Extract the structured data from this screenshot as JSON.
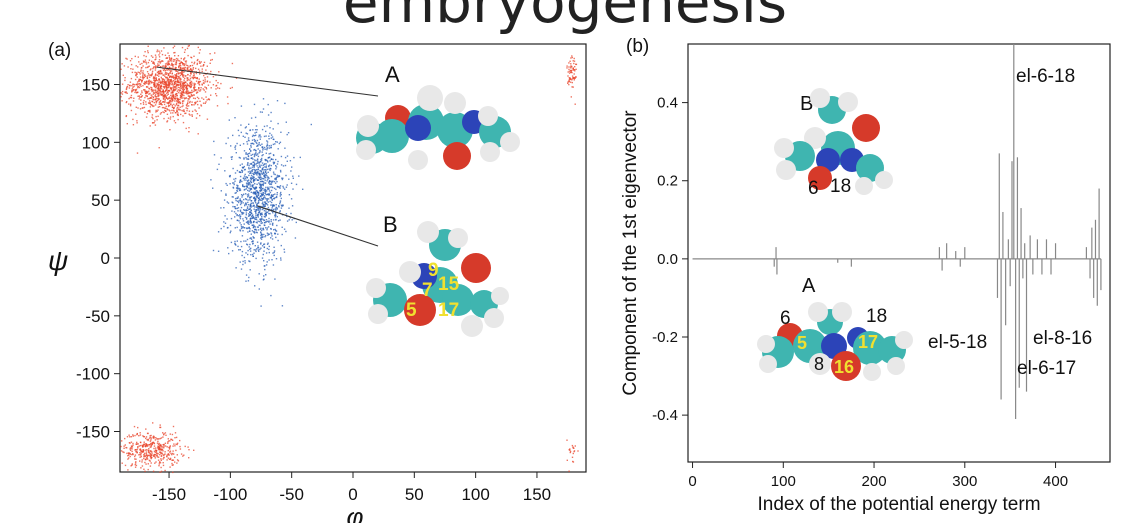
{
  "header_partial": "embryogenesis",
  "chart_data": [
    {
      "type": "scatter",
      "panel": "(a)",
      "xlabel": "φ",
      "ylabel": "ψ",
      "xlim": [
        -190,
        190
      ],
      "ylim": [
        -185,
        185
      ],
      "xticks": [
        -150,
        -100,
        -50,
        0,
        50,
        100,
        150
      ],
      "yticks": [
        -150,
        -100,
        -50,
        0,
        50,
        100,
        150
      ],
      "grid": false,
      "series": [
        {
          "color": "#e8452c",
          "clusters": [
            {
              "phi": -150,
              "psi": 150,
              "sphi": 17,
              "spsi": 14,
              "n": 1400
            },
            {
              "phi": -165,
              "psi": -165,
              "sphi": 12,
              "spsi": 8,
              "n": 420
            },
            {
              "phi": 178,
              "psi": 160,
              "sphi": 2,
              "spsi": 10,
              "n": 70
            },
            {
              "phi": 178,
              "psi": -168,
              "sphi": 2,
              "spsi": 6,
              "n": 20
            }
          ]
        },
        {
          "color": "#2a5fb5",
          "clusters": [
            {
              "phi": -78,
              "psi": 55,
              "sphi": 12,
              "spsi": 28,
              "n": 1300
            }
          ]
        }
      ],
      "annotations": [
        {
          "text": "A",
          "target": {
            "phi": -160,
            "psi": 165
          }
        },
        {
          "text": "B",
          "target": {
            "phi": -78,
            "psi": 45
          }
        }
      ],
      "atom_labels": [
        "9",
        "7",
        "15",
        "5",
        "17"
      ]
    },
    {
      "type": "line",
      "panel": "(b)",
      "xlabel": "Index of the potential energy term",
      "ylabel": "Component of the 1st eigenvector",
      "xlim": [
        -5,
        460
      ],
      "ylim": [
        -0.52,
        0.55
      ],
      "xticks": [
        0,
        100,
        200,
        300,
        400
      ],
      "yticks": [
        -0.4,
        -0.2,
        0.0,
        0.2,
        0.4
      ],
      "grid": false,
      "color": "#888888",
      "spikes": [
        {
          "x": 90,
          "y": -0.02
        },
        {
          "x": 92,
          "y": 0.03
        },
        {
          "x": 93,
          "y": -0.04
        },
        {
          "x": 160,
          "y": -0.01
        },
        {
          "x": 175,
          "y": -0.02
        },
        {
          "x": 272,
          "y": 0.03
        },
        {
          "x": 275,
          "y": -0.03
        },
        {
          "x": 280,
          "y": 0.04
        },
        {
          "x": 290,
          "y": 0.02
        },
        {
          "x": 295,
          "y": -0.02
        },
        {
          "x": 300,
          "y": 0.03
        },
        {
          "x": 336,
          "y": -0.1
        },
        {
          "x": 338,
          "y": 0.27
        },
        {
          "x": 340,
          "y": -0.36
        },
        {
          "x": 342,
          "y": 0.12
        },
        {
          "x": 345,
          "y": -0.17
        },
        {
          "x": 348,
          "y": 0.05
        },
        {
          "x": 350,
          "y": -0.07
        },
        {
          "x": 352,
          "y": 0.25
        },
        {
          "x": 354,
          "y": 0.55
        },
        {
          "x": 356,
          "y": -0.41
        },
        {
          "x": 358,
          "y": 0.26
        },
        {
          "x": 360,
          "y": -0.33
        },
        {
          "x": 362,
          "y": 0.13
        },
        {
          "x": 364,
          "y": -0.05
        },
        {
          "x": 366,
          "y": 0.04
        },
        {
          "x": 368,
          "y": -0.34
        },
        {
          "x": 372,
          "y": 0.06
        },
        {
          "x": 375,
          "y": -0.04
        },
        {
          "x": 380,
          "y": 0.05
        },
        {
          "x": 385,
          "y": -0.04
        },
        {
          "x": 390,
          "y": 0.05
        },
        {
          "x": 395,
          "y": -0.04
        },
        {
          "x": 400,
          "y": 0.04
        },
        {
          "x": 434,
          "y": 0.03
        },
        {
          "x": 438,
          "y": -0.05
        },
        {
          "x": 440,
          "y": 0.08
        },
        {
          "x": 442,
          "y": -0.1
        },
        {
          "x": 444,
          "y": 0.1
        },
        {
          "x": 446,
          "y": -0.12
        },
        {
          "x": 448,
          "y": 0.18
        },
        {
          "x": 450,
          "y": -0.08
        }
      ],
      "annotations": [
        "el-6-18",
        "el-5-18",
        "el-8-16",
        "el-6-17"
      ],
      "inset_B_label": "B",
      "inset_B_numbers": [
        "6",
        "18"
      ],
      "inset_A_label": "A",
      "inset_A_numbers": [
        "6",
        "18",
        "5",
        "8",
        "17",
        "16"
      ]
    }
  ]
}
